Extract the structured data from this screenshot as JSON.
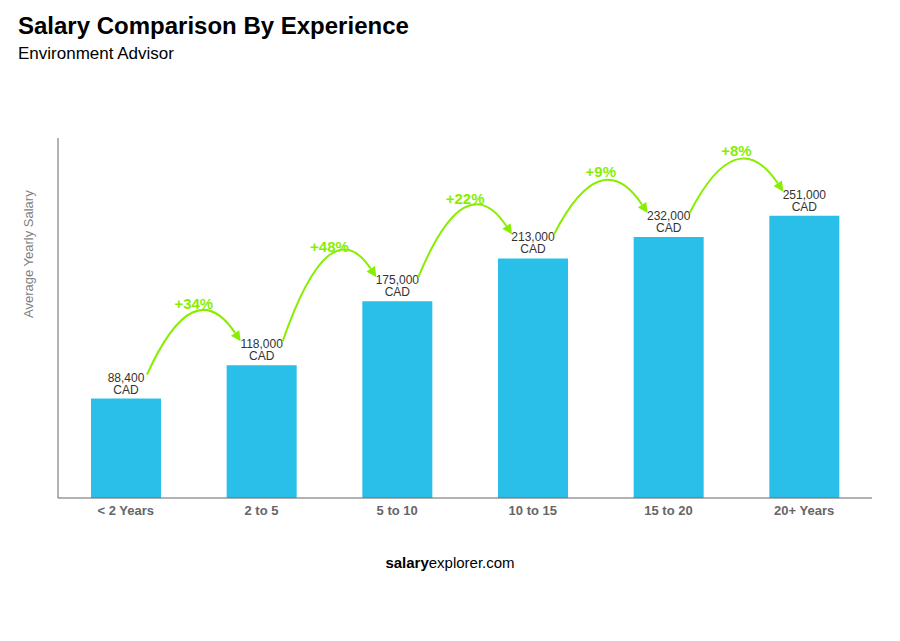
{
  "chart_data": {
    "type": "bar",
    "title": "Salary Comparison By Experience",
    "subtitle": "Environment Advisor",
    "ylabel": "Average Yearly Salary",
    "categories": [
      "< 2 Years",
      "2 to 5",
      "5 to 10",
      "10 to 15",
      "15 to 20",
      "20+ Years"
    ],
    "values": [
      88400,
      118000,
      175000,
      213000,
      232000,
      251000
    ],
    "value_labels": [
      "88,400 CAD",
      "118,000 CAD",
      "175,000 CAD",
      "213,000 CAD",
      "232,000 CAD",
      "251,000 CAD"
    ],
    "data_labels": true,
    "color": "#29bfe8",
    "ylim": [
      0,
      320000
    ],
    "tick_labels": "x",
    "grid": false,
    "annotations": [
      {
        "text": "+34%",
        "from": "< 2 Years",
        "to": "2 to 5",
        "color": "#88ee00"
      },
      {
        "text": "+48%",
        "from": "2 to 5",
        "to": "5 to 10",
        "color": "#88ee00"
      },
      {
        "text": "+22%",
        "from": "5 to 10",
        "to": "10 to 15",
        "color": "#88ee00"
      },
      {
        "text": "+9%",
        "from": "10 to 15",
        "to": "15 to 20",
        "color": "#88ee00"
      },
      {
        "text": "+8%",
        "from": "15 to 20",
        "to": "20+ Years",
        "color": "#88ee00"
      },
      {
        "text": "salary"
      },
      {
        "text": "explorer.com"
      }
    ]
  }
}
